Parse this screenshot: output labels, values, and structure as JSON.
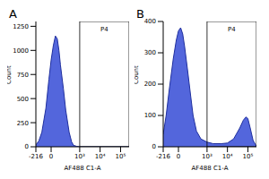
{
  "chart_data": [
    {
      "type": "area",
      "title": "A",
      "x_label": "AF488 C1-A",
      "y_label": "Count",
      "color": "#5366dc",
      "x": [
        -216,
        -150,
        -100,
        -50,
        -20,
        0,
        20,
        40,
        60,
        80,
        100,
        150,
        200,
        300,
        400,
        500,
        700,
        1000,
        10000,
        262144
      ],
      "values": [
        20,
        60,
        150,
        400,
        700,
        900,
        1050,
        1150,
        1120,
        1000,
        850,
        600,
        380,
        150,
        50,
        15,
        5,
        0,
        0,
        0
      ],
      "xlim": [
        -216,
        262144
      ],
      "xticks": [
        -216,
        0,
        {
          "value": 1000,
          "label": "10³"
        },
        {
          "value": 10000,
          "label": "10⁴"
        },
        {
          "value": 100000,
          "label": "10⁵"
        }
      ],
      "ylim": [
        0,
        1300
      ],
      "yticks": [
        0,
        250,
        500,
        750,
        1000,
        1250
      ],
      "gate": {
        "label": "P4",
        "range": [
          1000,
          262144
        ]
      }
    },
    {
      "type": "area",
      "title": "B",
      "x_label": "AF488 C1-A",
      "y_label": "Count",
      "color": "#5366dc",
      "x": [
        -216,
        -150,
        -100,
        -50,
        -20,
        0,
        20,
        40,
        60,
        100,
        150,
        200,
        300,
        500,
        1000,
        2000,
        5000,
        10000,
        20000,
        40000,
        60000,
        80000,
        100000,
        130000,
        180000,
        262144
      ],
      "values": [
        40,
        100,
        180,
        280,
        340,
        370,
        380,
        360,
        320,
        240,
        160,
        100,
        50,
        25,
        15,
        10,
        10,
        12,
        25,
        60,
        85,
        95,
        90,
        60,
        20,
        2
      ],
      "xlim": [
        -216,
        262144
      ],
      "xticks": [
        -216,
        0,
        {
          "value": 1000,
          "label": "10³"
        },
        {
          "value": 10000,
          "label": "10⁴"
        },
        {
          "value": 100000,
          "label": "10⁵"
        }
      ],
      "ylim": [
        0,
        400
      ],
      "yticks": [
        0,
        100,
        200,
        300,
        400
      ],
      "gate": {
        "label": "P4",
        "range": [
          1000,
          262144
        ]
      }
    }
  ]
}
